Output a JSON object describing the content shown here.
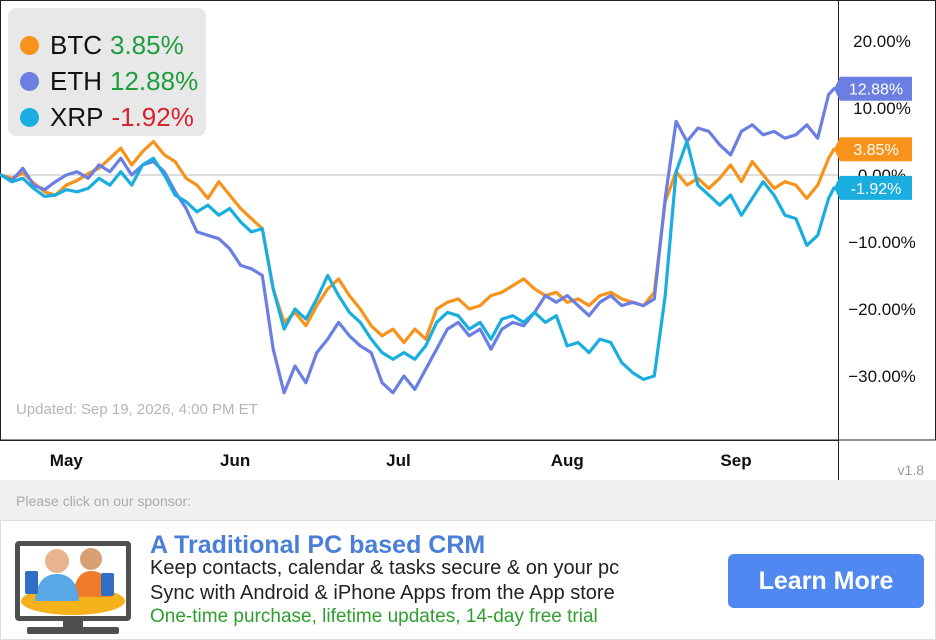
{
  "chart_data": {
    "type": "line",
    "yunit": "%",
    "ylim": [
      -37,
      25
    ],
    "yticks": [
      20,
      10,
      0,
      -10,
      -20,
      -30
    ],
    "ytick_labels": [
      "20.00%",
      "10.00%",
      "0.00%",
      "−10.00%",
      "−20.00%",
      "−30.00%"
    ],
    "xticks": [
      "May",
      "Jun",
      "Jul",
      "Aug",
      "Sep"
    ],
    "xtick_dates": [
      "2026-05-01",
      "2026-06-01",
      "2026-07-01",
      "2026-08-01",
      "2026-09-01"
    ],
    "xlim": [
      "2026-04-19",
      "2026-09-19"
    ],
    "zero_line": true,
    "series": [
      {
        "name": "BTC",
        "color": "#f7931a",
        "change_label": "3.85%",
        "change_color": "#1e9e3e",
        "points": [
          [
            "2026-04-19",
            0.0
          ],
          [
            "2026-04-21",
            -0.5
          ],
          [
            "2026-04-23",
            0.3
          ],
          [
            "2026-04-25",
            -1.2
          ],
          [
            "2026-04-27",
            -2.5
          ],
          [
            "2026-04-29",
            -3.0
          ],
          [
            "2026-05-01",
            -1.5
          ],
          [
            "2026-05-03",
            -0.8
          ],
          [
            "2026-05-05",
            0.2
          ],
          [
            "2026-05-07",
            1.0
          ],
          [
            "2026-05-09",
            2.5
          ],
          [
            "2026-05-11",
            4.0
          ],
          [
            "2026-05-13",
            1.5
          ],
          [
            "2026-05-15",
            3.5
          ],
          [
            "2026-05-17",
            5.0
          ],
          [
            "2026-05-19",
            3.0
          ],
          [
            "2026-05-21",
            2.0
          ],
          [
            "2026-05-23",
            -0.5
          ],
          [
            "2026-05-25",
            -1.5
          ],
          [
            "2026-05-27",
            -3.5
          ],
          [
            "2026-05-29",
            -1.0
          ],
          [
            "2026-05-31",
            -3.0
          ],
          [
            "2026-06-02",
            -5.0
          ],
          [
            "2026-06-04",
            -6.5
          ],
          [
            "2026-06-06",
            -8.0
          ],
          [
            "2026-06-08",
            -17.0
          ],
          [
            "2026-06-10",
            -22.0
          ],
          [
            "2026-06-12",
            -20.5
          ],
          [
            "2026-06-14",
            -22.5
          ],
          [
            "2026-06-16",
            -19.5
          ],
          [
            "2026-06-18",
            -17.0
          ],
          [
            "2026-06-20",
            -15.5
          ],
          [
            "2026-06-22",
            -18.0
          ],
          [
            "2026-06-24",
            -20.0
          ],
          [
            "2026-06-26",
            -22.5
          ],
          [
            "2026-06-28",
            -24.0
          ],
          [
            "2026-06-30",
            -23.0
          ],
          [
            "2026-07-02",
            -25.0
          ],
          [
            "2026-07-04",
            -23.0
          ],
          [
            "2026-07-06",
            -24.5
          ],
          [
            "2026-07-08",
            -20.0
          ],
          [
            "2026-07-10",
            -19.0
          ],
          [
            "2026-07-12",
            -18.5
          ],
          [
            "2026-07-14",
            -20.0
          ],
          [
            "2026-07-16",
            -19.5
          ],
          [
            "2026-07-18",
            -18.0
          ],
          [
            "2026-07-20",
            -17.5
          ],
          [
            "2026-07-22",
            -16.5
          ],
          [
            "2026-07-24",
            -15.5
          ],
          [
            "2026-07-26",
            -17.0
          ],
          [
            "2026-07-28",
            -18.0
          ],
          [
            "2026-07-30",
            -17.5
          ],
          [
            "2026-08-01",
            -19.0
          ],
          [
            "2026-08-03",
            -18.5
          ],
          [
            "2026-08-05",
            -19.5
          ],
          [
            "2026-08-07",
            -18.0
          ],
          [
            "2026-08-09",
            -17.5
          ],
          [
            "2026-08-11",
            -18.5
          ],
          [
            "2026-08-13",
            -19.0
          ],
          [
            "2026-08-15",
            -19.5
          ],
          [
            "2026-08-17",
            -17.5
          ],
          [
            "2026-08-19",
            -4.0
          ],
          [
            "2026-08-21",
            0.5
          ],
          [
            "2026-08-23",
            -1.5
          ],
          [
            "2026-08-25",
            -0.5
          ],
          [
            "2026-08-27",
            -2.0
          ],
          [
            "2026-08-29",
            -0.5
          ],
          [
            "2026-08-31",
            1.5
          ],
          [
            "2026-09-02",
            -1.0
          ],
          [
            "2026-09-04",
            2.0
          ],
          [
            "2026-09-06",
            0.0
          ],
          [
            "2026-09-08",
            -2.0
          ],
          [
            "2026-09-10",
            -1.0
          ],
          [
            "2026-09-12",
            -1.5
          ],
          [
            "2026-09-14",
            -3.5
          ],
          [
            "2026-09-16",
            -1.5
          ],
          [
            "2026-09-18",
            2.5
          ],
          [
            "2026-09-19",
            3.85
          ]
        ]
      },
      {
        "name": "ETH",
        "color": "#6b7fe3",
        "change_label": "12.88%",
        "change_color": "#1e9e3e",
        "points": [
          [
            "2026-04-19",
            0.0
          ],
          [
            "2026-04-21",
            -0.8
          ],
          [
            "2026-04-23",
            1.0
          ],
          [
            "2026-04-25",
            -1.5
          ],
          [
            "2026-04-27",
            -2.2
          ],
          [
            "2026-04-29",
            -1.0
          ],
          [
            "2026-05-01",
            0.0
          ],
          [
            "2026-05-03",
            0.5
          ],
          [
            "2026-05-05",
            -0.5
          ],
          [
            "2026-05-07",
            1.5
          ],
          [
            "2026-05-09",
            0.5
          ],
          [
            "2026-05-11",
            2.5
          ],
          [
            "2026-05-13",
            0.0
          ],
          [
            "2026-05-15",
            1.5
          ],
          [
            "2026-05-17",
            2.0
          ],
          [
            "2026-05-19",
            0.5
          ],
          [
            "2026-05-21",
            -2.5
          ],
          [
            "2026-05-23",
            -5.0
          ],
          [
            "2026-05-25",
            -8.5
          ],
          [
            "2026-05-27",
            -9.0
          ],
          [
            "2026-05-29",
            -9.5
          ],
          [
            "2026-05-31",
            -11.0
          ],
          [
            "2026-06-02",
            -13.5
          ],
          [
            "2026-06-04",
            -14.0
          ],
          [
            "2026-06-06",
            -15.0
          ],
          [
            "2026-06-08",
            -26.0
          ],
          [
            "2026-06-10",
            -32.5
          ],
          [
            "2026-06-12",
            -28.5
          ],
          [
            "2026-06-14",
            -31.0
          ],
          [
            "2026-06-16",
            -26.5
          ],
          [
            "2026-06-18",
            -24.5
          ],
          [
            "2026-06-20",
            -22.0
          ],
          [
            "2026-06-22",
            -24.0
          ],
          [
            "2026-06-24",
            -25.5
          ],
          [
            "2026-06-26",
            -26.5
          ],
          [
            "2026-06-28",
            -31.0
          ],
          [
            "2026-06-30",
            -32.5
          ],
          [
            "2026-07-02",
            -30.0
          ],
          [
            "2026-07-04",
            -32.0
          ],
          [
            "2026-07-06",
            -29.0
          ],
          [
            "2026-07-08",
            -26.0
          ],
          [
            "2026-07-10",
            -23.0
          ],
          [
            "2026-07-12",
            -22.0
          ],
          [
            "2026-07-14",
            -24.0
          ],
          [
            "2026-07-16",
            -23.0
          ],
          [
            "2026-07-18",
            -26.0
          ],
          [
            "2026-07-20",
            -23.0
          ],
          [
            "2026-07-22",
            -22.0
          ],
          [
            "2026-07-24",
            -22.5
          ],
          [
            "2026-07-26",
            -20.5
          ],
          [
            "2026-07-28",
            -18.0
          ],
          [
            "2026-07-30",
            -19.0
          ],
          [
            "2026-08-01",
            -18.0
          ],
          [
            "2026-08-03",
            -19.5
          ],
          [
            "2026-08-05",
            -21.0
          ],
          [
            "2026-08-07",
            -19.0
          ],
          [
            "2026-08-09",
            -18.0
          ],
          [
            "2026-08-11",
            -19.5
          ],
          [
            "2026-08-13",
            -19.0
          ],
          [
            "2026-08-15",
            -19.5
          ],
          [
            "2026-08-17",
            -18.5
          ],
          [
            "2026-08-19",
            -3.5
          ],
          [
            "2026-08-21",
            8.0
          ],
          [
            "2026-08-23",
            5.0
          ],
          [
            "2026-08-25",
            7.0
          ],
          [
            "2026-08-27",
            6.5
          ],
          [
            "2026-08-29",
            4.5
          ],
          [
            "2026-08-31",
            3.0
          ],
          [
            "2026-09-02",
            6.5
          ],
          [
            "2026-09-04",
            7.5
          ],
          [
            "2026-09-06",
            6.0
          ],
          [
            "2026-09-08",
            6.5
          ],
          [
            "2026-09-10",
            5.5
          ],
          [
            "2026-09-12",
            6.0
          ],
          [
            "2026-09-14",
            7.5
          ],
          [
            "2026-09-16",
            5.5
          ],
          [
            "2026-09-18",
            12.0
          ],
          [
            "2026-09-19",
            12.88
          ]
        ]
      },
      {
        "name": "XRP",
        "color": "#1aaee0",
        "change_label": "-1.92%",
        "change_color": "#d6232e",
        "points": [
          [
            "2026-04-19",
            0.0
          ],
          [
            "2026-04-21",
            -1.0
          ],
          [
            "2026-04-23",
            -0.5
          ],
          [
            "2026-04-25",
            -2.0
          ],
          [
            "2026-04-27",
            -3.2
          ],
          [
            "2026-04-29",
            -3.0
          ],
          [
            "2026-05-01",
            -2.2
          ],
          [
            "2026-05-03",
            -2.5
          ],
          [
            "2026-05-05",
            -2.0
          ],
          [
            "2026-05-07",
            -0.5
          ],
          [
            "2026-05-09",
            -1.5
          ],
          [
            "2026-05-11",
            0.5
          ],
          [
            "2026-05-13",
            -1.5
          ],
          [
            "2026-05-15",
            1.5
          ],
          [
            "2026-05-17",
            2.5
          ],
          [
            "2026-05-19",
            0.0
          ],
          [
            "2026-05-21",
            -3.0
          ],
          [
            "2026-05-23",
            -4.0
          ],
          [
            "2026-05-25",
            -5.5
          ],
          [
            "2026-05-27",
            -4.5
          ],
          [
            "2026-05-29",
            -6.0
          ],
          [
            "2026-05-31",
            -5.0
          ],
          [
            "2026-06-02",
            -7.0
          ],
          [
            "2026-06-04",
            -8.5
          ],
          [
            "2026-06-06",
            -8.0
          ],
          [
            "2026-06-08",
            -17.0
          ],
          [
            "2026-06-10",
            -23.0
          ],
          [
            "2026-06-12",
            -20.0
          ],
          [
            "2026-06-14",
            -21.5
          ],
          [
            "2026-06-16",
            -18.5
          ],
          [
            "2026-06-18",
            -15.0
          ],
          [
            "2026-06-20",
            -18.0
          ],
          [
            "2026-06-22",
            -20.5
          ],
          [
            "2026-06-24",
            -22.0
          ],
          [
            "2026-06-26",
            -24.5
          ],
          [
            "2026-06-28",
            -26.5
          ],
          [
            "2026-06-30",
            -27.5
          ],
          [
            "2026-07-02",
            -26.5
          ],
          [
            "2026-07-04",
            -27.5
          ],
          [
            "2026-07-06",
            -25.5
          ],
          [
            "2026-07-08",
            -22.0
          ],
          [
            "2026-07-10",
            -20.5
          ],
          [
            "2026-07-12",
            -21.0
          ],
          [
            "2026-07-14",
            -23.0
          ],
          [
            "2026-07-16",
            -22.0
          ],
          [
            "2026-07-18",
            -24.5
          ],
          [
            "2026-07-20",
            -21.5
          ],
          [
            "2026-07-22",
            -21.0
          ],
          [
            "2026-07-24",
            -22.0
          ],
          [
            "2026-07-26",
            -20.5
          ],
          [
            "2026-07-28",
            -22.0
          ],
          [
            "2026-07-30",
            -21.0
          ],
          [
            "2026-08-01",
            -25.5
          ],
          [
            "2026-08-03",
            -25.0
          ],
          [
            "2026-08-05",
            -26.5
          ],
          [
            "2026-08-07",
            -24.5
          ],
          [
            "2026-08-09",
            -25.0
          ],
          [
            "2026-08-11",
            -28.0
          ],
          [
            "2026-08-13",
            -29.5
          ],
          [
            "2026-08-15",
            -30.5
          ],
          [
            "2026-08-17",
            -30.0
          ],
          [
            "2026-08-19",
            -18.0
          ],
          [
            "2026-08-21",
            0.5
          ],
          [
            "2026-08-23",
            5.0
          ],
          [
            "2026-08-25",
            -1.5
          ],
          [
            "2026-08-27",
            -3.0
          ],
          [
            "2026-08-29",
            -4.5
          ],
          [
            "2026-08-31",
            -3.0
          ],
          [
            "2026-09-02",
            -6.0
          ],
          [
            "2026-09-04",
            -3.5
          ],
          [
            "2026-09-06",
            -1.0
          ],
          [
            "2026-09-08",
            -3.0
          ],
          [
            "2026-09-10",
            -6.0
          ],
          [
            "2026-09-12",
            -6.5
          ],
          [
            "2026-09-14",
            -10.5
          ],
          [
            "2026-09-16",
            -9.0
          ],
          [
            "2026-09-18",
            -3.5
          ],
          [
            "2026-09-19",
            -1.92
          ]
        ]
      }
    ]
  },
  "legend": {
    "items": [
      {
        "name": "BTC",
        "change": "3.85%"
      },
      {
        "name": "ETH",
        "change": "12.88%"
      },
      {
        "name": "XRP",
        "change": "-1.92%"
      }
    ]
  },
  "updated": "Updated: Sep 19, 2026, 4:00 PM ET",
  "version": "v1.8",
  "sponsor": {
    "label": "Please click on our sponsor:",
    "ad": {
      "title": "A Traditional PC based CRM",
      "line1": "Keep contacts, calendar & tasks secure & on your pc",
      "line2": "Sync with Android & iPhone Apps from the App store",
      "line3": "One-time purchase, lifetime updates, 14-day free trial",
      "button": "Learn More"
    }
  }
}
